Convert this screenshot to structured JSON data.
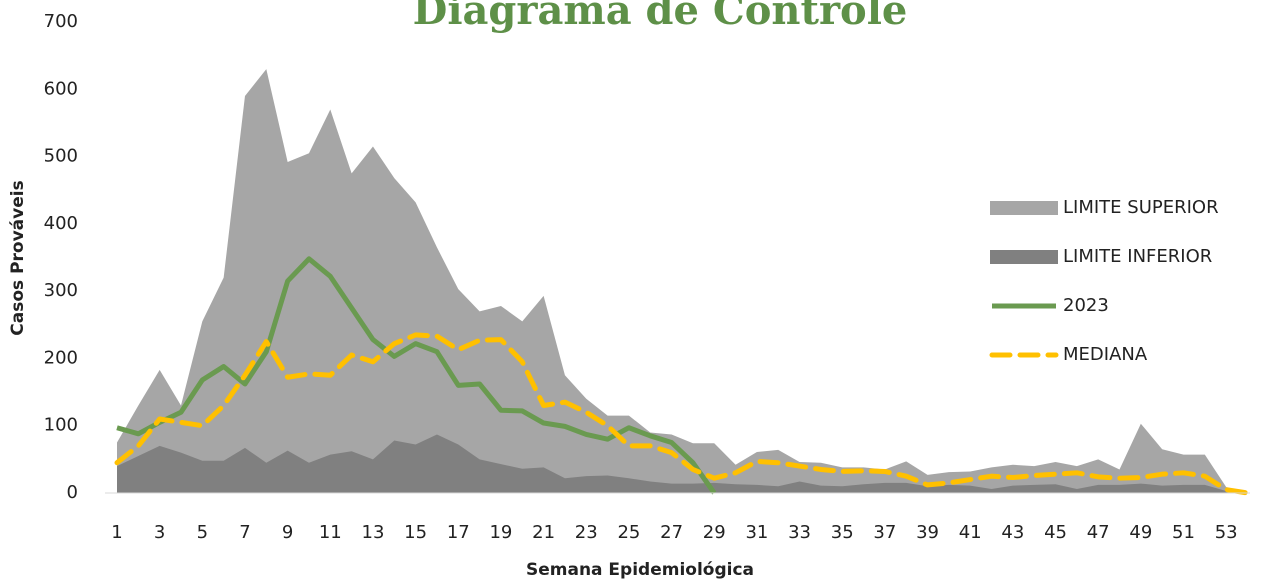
{
  "chart_data": {
    "type": "area",
    "title": "Diagrama de Controle",
    "x_label": "Semana Epidemiológica",
    "y_label": "Casos Prováveis",
    "categories": [
      "1",
      null,
      "3",
      null,
      "5",
      null,
      "7",
      null,
      "9",
      null,
      "11",
      null,
      "13",
      null,
      "15",
      null,
      "17",
      null,
      "19",
      null,
      "21",
      null,
      "23",
      null,
      "25",
      null,
      "27",
      null,
      "29",
      null,
      "31",
      null,
      "33",
      null,
      "35",
      null,
      "37",
      null,
      "39",
      null,
      "41",
      null,
      "43",
      null,
      "45",
      null,
      "47",
      null,
      "49",
      null,
      "51",
      null,
      "53",
      null
    ],
    "ylim": [
      0,
      700
    ],
    "yticks": [
      0,
      100,
      200,
      300,
      400,
      500,
      600,
      700
    ],
    "grid": false,
    "legend": "right",
    "series": [
      {
        "name": "LIMITE SUPERIOR",
        "type": "area",
        "color": "#a6a6a6",
        "values": [
          75,
          130,
          183,
          130,
          255,
          320,
          590,
          630,
          492,
          505,
          570,
          475,
          515,
          468,
          432,
          365,
          303,
          270,
          278,
          255,
          293,
          175,
          140,
          115,
          115,
          90,
          87,
          74,
          74,
          42,
          61,
          64,
          46,
          45,
          38,
          38,
          35,
          47,
          27,
          31,
          32,
          38,
          42,
          40,
          46,
          40,
          50,
          35,
          103,
          65,
          57,
          57,
          9,
          0
        ]
      },
      {
        "name": "LIMITE INFERIOR",
        "type": "area",
        "color": "#808080",
        "values": [
          40,
          55,
          70,
          60,
          48,
          48,
          67,
          45,
          63,
          45,
          57,
          62,
          50,
          78,
          72,
          87,
          72,
          50,
          43,
          36,
          38,
          22,
          25,
          26,
          22,
          17,
          14,
          14,
          15,
          13,
          12,
          10,
          17,
          11,
          10,
          13,
          15,
          15,
          10,
          12,
          11,
          6,
          11,
          12,
          13,
          6,
          12,
          12,
          14,
          11,
          12,
          12,
          3,
          0
        ]
      },
      {
        "name": "2023",
        "type": "line",
        "dashed": false,
        "color": "#6a9a50",
        "values": [
          97,
          88,
          105,
          120,
          168,
          188,
          162,
          210,
          315,
          348,
          322,
          275,
          228,
          203,
          222,
          210,
          160,
          162,
          123,
          122,
          104,
          99,
          87,
          80,
          97,
          85,
          75,
          45,
          0,
          null,
          null,
          null,
          null,
          null,
          null,
          null,
          null,
          null,
          null,
          null,
          null,
          null,
          null,
          null,
          null,
          null,
          null,
          null,
          null,
          null,
          null,
          null,
          null,
          null
        ]
      },
      {
        "name": "MEDIANA",
        "type": "line",
        "dashed": true,
        "color": "#ffc000",
        "values": [
          45,
          70,
          110,
          105,
          100,
          130,
          175,
          225,
          172,
          177,
          175,
          205,
          195,
          222,
          235,
          233,
          213,
          227,
          228,
          195,
          130,
          135,
          120,
          100,
          70,
          70,
          60,
          35,
          22,
          30,
          47,
          45,
          40,
          35,
          32,
          33,
          32,
          25,
          12,
          15,
          20,
          25,
          23,
          26,
          28,
          30,
          24,
          22,
          23,
          28,
          30,
          25,
          5,
          0
        ]
      }
    ]
  }
}
